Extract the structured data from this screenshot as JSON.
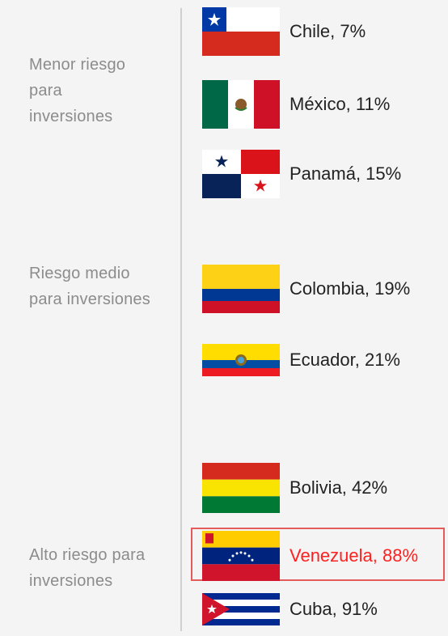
{
  "categories": {
    "low": "Menor riesgo para inversiones",
    "medium": "Riesgo medio para inversiones",
    "high": "Alto riesgo para inversiones"
  },
  "countries": [
    {
      "label": "Chile, 7%"
    },
    {
      "label": "México, 11%"
    },
    {
      "label": "Panamá, 15%"
    },
    {
      "label": "Colombia, 19%"
    },
    {
      "label": "Ecuador, 21%"
    },
    {
      "label": "Bolivia, 42%"
    },
    {
      "label": "Venezuela, 88%"
    },
    {
      "label": "Cuba, 91%"
    }
  ],
  "colors": {
    "highlight_text": "#ff2020",
    "highlight_border": "#e45b5b",
    "category_text": "#8c8c8c",
    "divider": "#cfcfcf"
  }
}
